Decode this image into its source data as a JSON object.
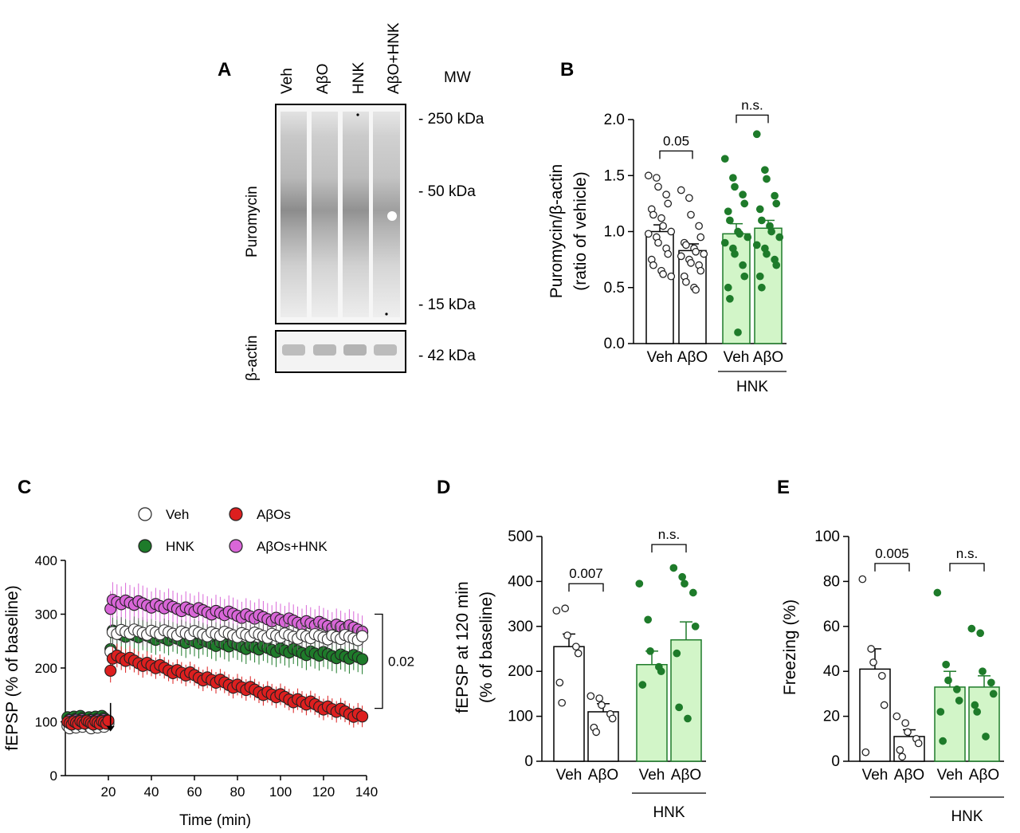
{
  "colors": {
    "veh": "#ffffff",
    "hnk": "#1e7b2a",
    "abo": "#dd1f1f",
    "abo_hnk": "#d966d8",
    "hnk_bar": "#d2f5c8",
    "hnk_bar_edge": "#1e7b2a",
    "white_bar": "#ffffff"
  },
  "panels": {
    "A": {
      "letter": "A",
      "lanes": [
        "Veh",
        "AβO",
        "HNK",
        "AβO+HNK"
      ],
      "mw_title": "MW",
      "mw_markers": [
        "- 250 kDa",
        "- 50 kDa",
        "- 15 kDa",
        "- 42 kDa"
      ],
      "blot_top_label": "Puromycin",
      "blot_bottom_label": "β-actin"
    },
    "B": {
      "letter": "B"
    },
    "C": {
      "letter": "C"
    },
    "D": {
      "letter": "D"
    },
    "E": {
      "letter": "E"
    }
  },
  "chart_data": [
    {
      "id": "B",
      "type": "bar",
      "ylabel_line1": "Puromycin/β-actin",
      "ylabel_line2": "(ratio of vehicle)",
      "ylim": [
        0,
        2.0
      ],
      "yticks": [
        "0.0",
        "0.5",
        "1.0",
        "1.5",
        "2.0"
      ],
      "categories": [
        "Veh",
        "AβO",
        "Veh",
        "AβO"
      ],
      "group_label": "HNK",
      "values": [
        1.0,
        0.83,
        0.98,
        1.03
      ],
      "sem": [
        0.06,
        0.06,
        0.09,
        0.07
      ],
      "fills": [
        "white",
        "white",
        "green",
        "green"
      ],
      "points": [
        [
          1.5,
          1.48,
          1.4,
          1.33,
          1.25,
          1.2,
          1.15,
          1.12,
          1.05,
          1.0,
          0.98,
          0.95,
          0.9,
          0.85,
          0.8,
          0.75,
          0.7,
          0.65,
          0.62,
          0.6
        ],
        [
          1.37,
          1.3,
          1.15,
          1.05,
          0.95,
          0.9,
          0.88,
          0.85,
          0.82,
          0.8,
          0.78,
          0.75,
          0.72,
          0.7,
          0.65,
          0.6,
          0.55,
          0.5,
          0.48
        ],
        [
          1.65,
          1.48,
          1.4,
          1.33,
          1.25,
          1.18,
          1.1,
          1.0,
          0.98,
          0.95,
          0.9,
          0.85,
          0.8,
          0.7,
          0.6,
          0.5,
          0.4,
          0.1
        ],
        [
          1.87,
          1.55,
          1.47,
          1.32,
          1.25,
          1.2,
          1.1,
          1.05,
          1.0,
          0.95,
          0.88,
          0.85,
          0.8,
          0.75,
          0.7,
          0.6,
          0.5
        ]
      ],
      "comparisons": [
        {
          "from": 0,
          "to": 1,
          "label": "0.05",
          "y": 1.72
        },
        {
          "from": 2,
          "to": 3,
          "label": "n.s.",
          "y": 2.04
        }
      ]
    },
    {
      "id": "C",
      "type": "scatter",
      "xlabel": "Time (min)",
      "ylabel": "fEPSP (% of baseline)",
      "xlim": [
        0,
        140
      ],
      "ylim": [
        0,
        400
      ],
      "xticks": [
        "20",
        "40",
        "60",
        "80",
        "100",
        "120",
        "140"
      ],
      "yticks": [
        "0",
        "100",
        "200",
        "300",
        "400"
      ],
      "legend": [
        "Veh",
        "AβOs",
        "HNK",
        "AβOs+HNK"
      ],
      "series": [
        {
          "name": "HNK",
          "key": "hnk",
          "baseline": [
            100,
            112
          ],
          "induction": 235,
          "start": 265,
          "end": 218,
          "err": 28
        },
        {
          "name": "AβOs+HNK",
          "key": "abo_hnk",
          "baseline": [
            98,
            105
          ],
          "induction": 310,
          "start": 325,
          "end": 272,
          "err": 30
        },
        {
          "name": "Veh",
          "key": "veh",
          "baseline": [
            88,
            102
          ],
          "induction": 230,
          "start": 268,
          "end": 256,
          "err": 22
        },
        {
          "name": "AβOs",
          "key": "abo",
          "baseline": [
            95,
            103
          ],
          "induction": 195,
          "start": 222,
          "end": 110,
          "err": 20
        }
      ],
      "arrow_time": 21,
      "comparison": {
        "label": "0.02",
        "y_top": 300,
        "y_bottom": 125
      }
    },
    {
      "id": "D",
      "type": "bar",
      "ylabel_line1": "fEPSP at 120 min",
      "ylabel_line2": "(% of baseline)",
      "ylim": [
        0,
        500
      ],
      "yticks": [
        "0",
        "100",
        "200",
        "300",
        "400",
        "500"
      ],
      "categories": [
        "Veh",
        "AβO",
        "Veh",
        "AβO"
      ],
      "group_label": "HNK",
      "values": [
        255,
        110,
        215,
        270
      ],
      "sem": [
        28,
        18,
        30,
        40
      ],
      "fills": [
        "white",
        "white",
        "green",
        "green"
      ],
      "points": [
        [
          335,
          340,
          280,
          255,
          240,
          175,
          130
        ],
        [
          145,
          140,
          125,
          105,
          95,
          75,
          65
        ],
        [
          395,
          315,
          245,
          210,
          200,
          170
        ],
        [
          430,
          410,
          395,
          375,
          300,
          240,
          120,
          95
        ]
      ],
      "comparisons": [
        {
          "from": 0,
          "to": 1,
          "label": "0.007",
          "y": 395
        },
        {
          "from": 2,
          "to": 3,
          "label": "n.s.",
          "y": 482
        }
      ]
    },
    {
      "id": "E",
      "type": "bar",
      "ylabel_line1": "Freezing (%)",
      "ylabel_line2": "",
      "ylim": [
        0,
        100
      ],
      "yticks": [
        "0",
        "20",
        "40",
        "60",
        "80",
        "100"
      ],
      "categories": [
        "Veh",
        "AβO",
        "Veh",
        "AβO"
      ],
      "group_label": "HNK",
      "values": [
        41,
        11,
        33,
        33
      ],
      "sem": [
        9,
        3,
        7,
        5
      ],
      "fills": [
        "white",
        "white",
        "green",
        "green"
      ],
      "points": [
        [
          81,
          50,
          44,
          38,
          25,
          4
        ],
        [
          20,
          17,
          13,
          10,
          8,
          5,
          2
        ],
        [
          75,
          43,
          36,
          32,
          27,
          22,
          9
        ],
        [
          59,
          57,
          40,
          35,
          30,
          25,
          22,
          11
        ]
      ],
      "comparisons": [
        {
          "from": 0,
          "to": 1,
          "label": "0.005",
          "y": 88
        },
        {
          "from": 2,
          "to": 3,
          "label": "n.s.",
          "y": 88
        }
      ]
    }
  ]
}
